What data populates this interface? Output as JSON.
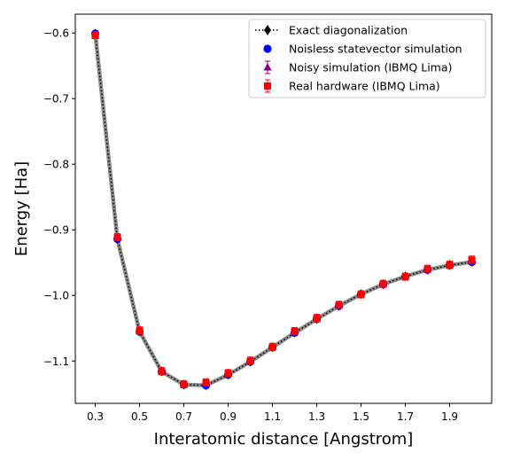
{
  "chart_data": {
    "type": "line",
    "title": "",
    "xlabel": "Interatomic distance [Angstrom]",
    "ylabel": "Energy [Ha]",
    "xlim": [
      0.21,
      2.09
    ],
    "ylim": [
      -1.1645,
      -0.5714
    ],
    "xticks": [
      0.3,
      0.5,
      0.7,
      0.9,
      1.1,
      1.3,
      1.5,
      1.7,
      1.9
    ],
    "xtick_labels": [
      "0.3",
      "0.5",
      "0.7",
      "0.9",
      "1.1",
      "1.3",
      "1.5",
      "1.7",
      "1.9"
    ],
    "yticks": [
      -0.6,
      -0.7,
      -0.8,
      -0.9,
      -1.0,
      -1.1
    ],
    "ytick_labels": [
      "−0.6",
      "−0.7",
      "−0.8",
      "−0.9",
      "−1.0",
      "−1.1"
    ],
    "grid": false,
    "legend_position": "top-right",
    "series": [
      {
        "name": "Exact diagonalization",
        "style": "dotted-line-diamond",
        "color": "#000000",
        "x": [
          0.3,
          0.4,
          0.5,
          0.6,
          0.7,
          0.8,
          0.9,
          1.0,
          1.1,
          1.2,
          1.3,
          1.4,
          1.5,
          1.6,
          1.7,
          1.8,
          1.9,
          2.0
        ],
        "y": [
          -0.601,
          -0.914,
          -1.055,
          -1.116,
          -1.136,
          -1.137,
          -1.121,
          -1.101,
          -1.079,
          -1.057,
          -1.036,
          -1.016,
          -0.998,
          -0.983,
          -0.971,
          -0.961,
          -0.954,
          -0.949
        ]
      },
      {
        "name": "Noisless statevector simulation",
        "style": "circle",
        "color": "#0000ff",
        "x": [
          0.3,
          0.4,
          0.5,
          0.6,
          0.7,
          0.8,
          0.9,
          1.0,
          1.1,
          1.2,
          1.3,
          1.4,
          1.5,
          1.6,
          1.7,
          1.8,
          1.9,
          2.0
        ],
        "y": [
          -0.601,
          -0.914,
          -1.055,
          -1.116,
          -1.136,
          -1.137,
          -1.121,
          -1.101,
          -1.079,
          -1.057,
          -1.036,
          -1.016,
          -0.998,
          -0.983,
          -0.971,
          -0.961,
          -0.954,
          -0.949
        ]
      },
      {
        "name": "Noisy simulation (IBMQ Lima)",
        "style": "triangle-errorbar",
        "color": "#800080",
        "x": [
          0.3,
          0.4,
          0.5,
          0.6,
          0.7,
          0.8,
          0.9,
          1.0,
          1.1,
          1.2,
          1.3,
          1.4,
          1.5,
          1.6,
          1.7,
          1.8,
          1.9,
          2.0
        ],
        "y": [
          -0.602,
          -0.912,
          -1.054,
          -1.115,
          -1.135,
          -1.134,
          -1.118,
          -1.099,
          -1.078,
          -1.056,
          -1.034,
          -1.014,
          -0.997,
          -0.982,
          -0.97,
          -0.96,
          -0.952,
          -0.948
        ]
      },
      {
        "name": "Real hardware (IBMQ Lima)",
        "style": "square-errorbar",
        "color": "#ff0000",
        "x": [
          0.3,
          0.4,
          0.5,
          0.6,
          0.7,
          0.8,
          0.9,
          1.0,
          1.1,
          1.2,
          1.3,
          1.4,
          1.5,
          1.6,
          1.7,
          1.8,
          1.9,
          2.0
        ],
        "y": [
          -0.604,
          -0.912,
          -1.054,
          -1.116,
          -1.136,
          -1.133,
          -1.119,
          -1.1,
          -1.079,
          -1.055,
          -1.035,
          -1.015,
          -0.999,
          -0.983,
          -0.972,
          -0.96,
          -0.954,
          -0.946
        ]
      }
    ]
  }
}
